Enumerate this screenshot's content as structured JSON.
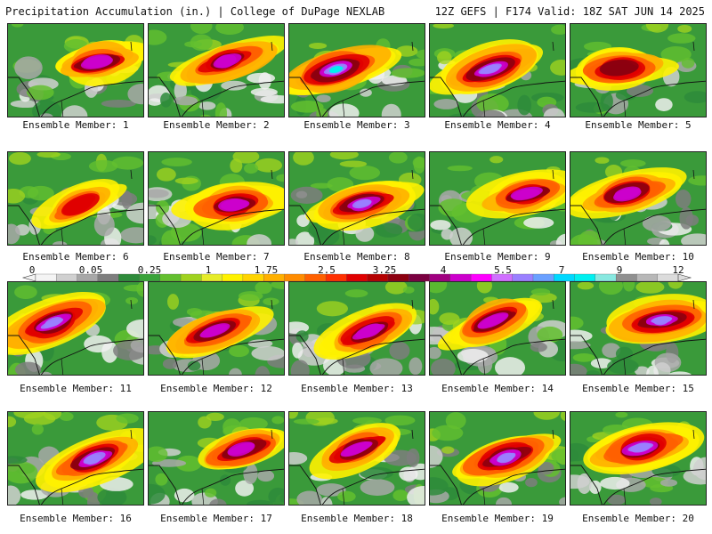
{
  "header": {
    "left_title": "Precipitation Accumulation (in.) | College of DuPage NEXLAB",
    "right_title": "12Z GEFS | F174 Valid: 18Z SAT JUN 14 2025"
  },
  "legend": {
    "tick_labels": [
      "0",
      "0.05",
      "0.25",
      "1",
      "1.75",
      "2.5",
      "3.25",
      "4",
      "5.5",
      "7",
      "9",
      "12"
    ],
    "colors": [
      "#f4f4f4",
      "#d0d0d0",
      "#a8a8a8",
      "#7e7e7e",
      "#2e8b3b",
      "#3aa33a",
      "#63bf2f",
      "#9fd21f",
      "#e6ec2a",
      "#fff200",
      "#ffd400",
      "#ffb000",
      "#ff8c00",
      "#ff6000",
      "#ff3000",
      "#e00000",
      "#b40000",
      "#8c0010",
      "#7a0040",
      "#a00080",
      "#cc00cc",
      "#ff00ff",
      "#d070ff",
      "#9a80ff",
      "#6aa0ff",
      "#00d8ff",
      "#00f0f0",
      "#88e8e0",
      "#909090",
      "#b8b8b8",
      "#dcdcdc"
    ]
  },
  "panel_label_prefix": "Ensemble Member: ",
  "members": [
    {
      "id": "1",
      "intensity": 0.55,
      "seed": 11
    },
    {
      "id": "2",
      "intensity": 0.6,
      "seed": 23
    },
    {
      "id": "3",
      "intensity": 0.9,
      "seed": 37
    },
    {
      "id": "4",
      "intensity": 0.8,
      "seed": 41
    },
    {
      "id": "5",
      "intensity": 0.45,
      "seed": 53
    },
    {
      "id": "6",
      "intensity": 0.15,
      "seed": 67
    },
    {
      "id": "7",
      "intensity": 0.65,
      "seed": 71
    },
    {
      "id": "8",
      "intensity": 0.7,
      "seed": 83
    },
    {
      "id": "9",
      "intensity": 0.5,
      "seed": 97
    },
    {
      "id": "10",
      "intensity": 0.65,
      "seed": 101
    },
    {
      "id": "11",
      "intensity": 0.85,
      "seed": 113
    },
    {
      "id": "12",
      "intensity": 0.55,
      "seed": 127
    },
    {
      "id": "13",
      "intensity": 0.6,
      "seed": 131
    },
    {
      "id": "14",
      "intensity": 0.55,
      "seed": 149
    },
    {
      "id": "15",
      "intensity": 0.7,
      "seed": 157
    },
    {
      "id": "16",
      "intensity": 0.75,
      "seed": 163
    },
    {
      "id": "17",
      "intensity": 0.6,
      "seed": 173
    },
    {
      "id": "18",
      "intensity": 0.5,
      "seed": 181
    },
    {
      "id": "19",
      "intensity": 0.8,
      "seed": 191
    },
    {
      "id": "20",
      "intensity": 0.8,
      "seed": 197
    }
  ]
}
